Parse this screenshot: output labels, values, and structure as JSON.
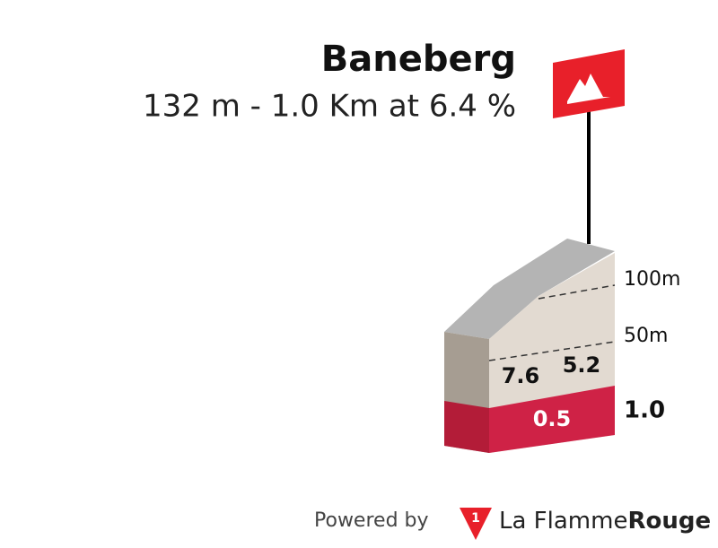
{
  "title": "Baneberg",
  "subtitle": "132 m - 1.0 Km at 6.4 %",
  "elevation_labels": [
    "100m",
    "50m"
  ],
  "gradients": [
    "7.6",
    "5.2"
  ],
  "distance_labels": [
    "0.5",
    "1.0"
  ],
  "footer": {
    "prefix": "Powered by",
    "brand": "La Flamme",
    "brand_bold": "Rouge"
  }
}
